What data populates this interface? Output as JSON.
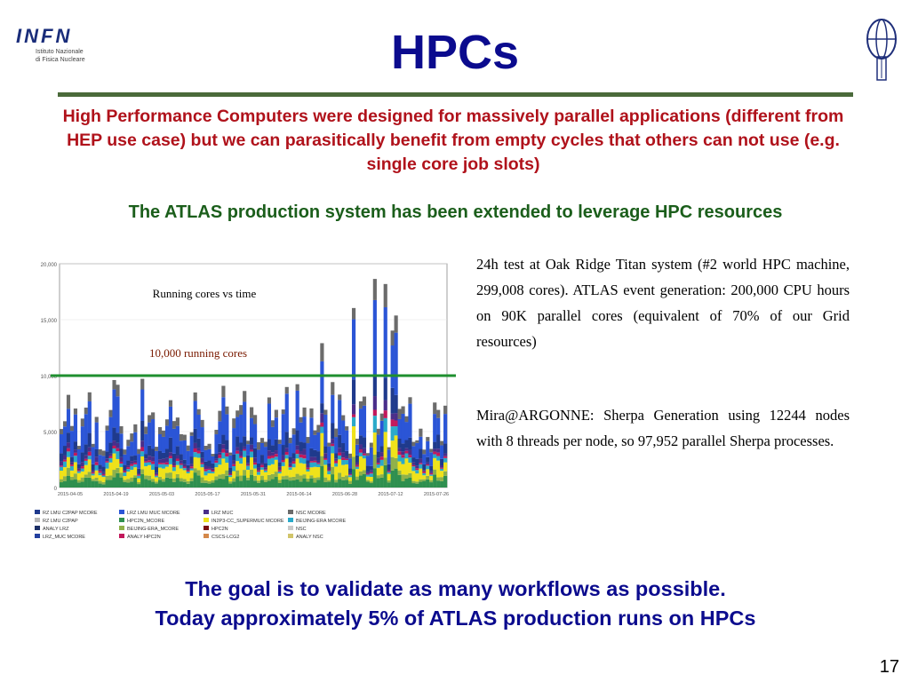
{
  "logo": {
    "big": "INFN",
    "line1": "Istituto Nazionale",
    "line2": "di Fisica Nucleare"
  },
  "title": "HPCs",
  "intro": "High Performance Computers were designed for massively parallel applications (different from HEP use case) but we can parasitically benefit from empty cycles that others can not use (e.g. single core job slots)",
  "atlas_line": "The ATLAS production system has been extended to leverage HPC resources",
  "chart": {
    "label_title": "Running cores vs time",
    "label_threshold": "10,000 running cores",
    "threshold": 10000,
    "y_ticks": [
      "20,000",
      "15,000",
      "10,000",
      "5,000",
      "0"
    ],
    "x_ticks": [
      "2015-04-05",
      "2015-04-19",
      "2015-05-03",
      "2015-05-17",
      "2015-05-31",
      "2015-06-14",
      "2015-06-28",
      "2015-07-12",
      "2015-07-26"
    ],
    "legend": [
      {
        "name": "RZ LMU C2PAP MCORE",
        "color": "#1f3a8c"
      },
      {
        "name": "LRZ LMU MUC MCORE",
        "color": "#2b55d6"
      },
      {
        "name": "LRZ MUC",
        "color": "#4a2e8a"
      },
      {
        "name": "NSC MCORE",
        "color": "#6b6b6b"
      },
      {
        "name": "RZ LMU C2PAP",
        "color": "#b7b7b7"
      },
      {
        "name": "HPC2N_MCORE",
        "color": "#2f8f4f"
      },
      {
        "name": "IN2P3-CC_SUPERMUC MCORE",
        "color": "#efe21a"
      },
      {
        "name": "BEIJING-ERA MCORE",
        "color": "#2aa9c9"
      },
      {
        "name": "ANALY LRZ",
        "color": "#1b2f66"
      },
      {
        "name": "BEIJING-ERA_MCORE",
        "color": "#8fb14a"
      },
      {
        "name": "HPC2N",
        "color": "#7a1010"
      },
      {
        "name": "NSC",
        "color": "#c9c9c9"
      },
      {
        "name": "LRZ_MUC MCORE",
        "color": "#233f9f"
      },
      {
        "name": "ANALY HPC2N",
        "color": "#c2185b"
      },
      {
        "name": "CSCS-LCG2",
        "color": "#d4884a"
      },
      {
        "name": "ANALY NSC",
        "color": "#d1c56a"
      }
    ]
  },
  "titan_text": "24h test at Oak Ridge Titan system (#2 world HPC machine, 299,008 cores). ATLAS event generation: 200,000 CPU hours on 90K parallel cores (equivalent of 70% of our Grid resources)",
  "mira_text": "Mira@ARGONNE: Sherpa Generation using 12244 nodes with 8 threads per node, so 97,952 parallel Sherpa processes.",
  "goal_line1": "The goal is to validate as many workflows as possible.",
  "goal_line2": "Today approximately 5% of ATLAS production runs on HPCs",
  "page_number": "17"
}
